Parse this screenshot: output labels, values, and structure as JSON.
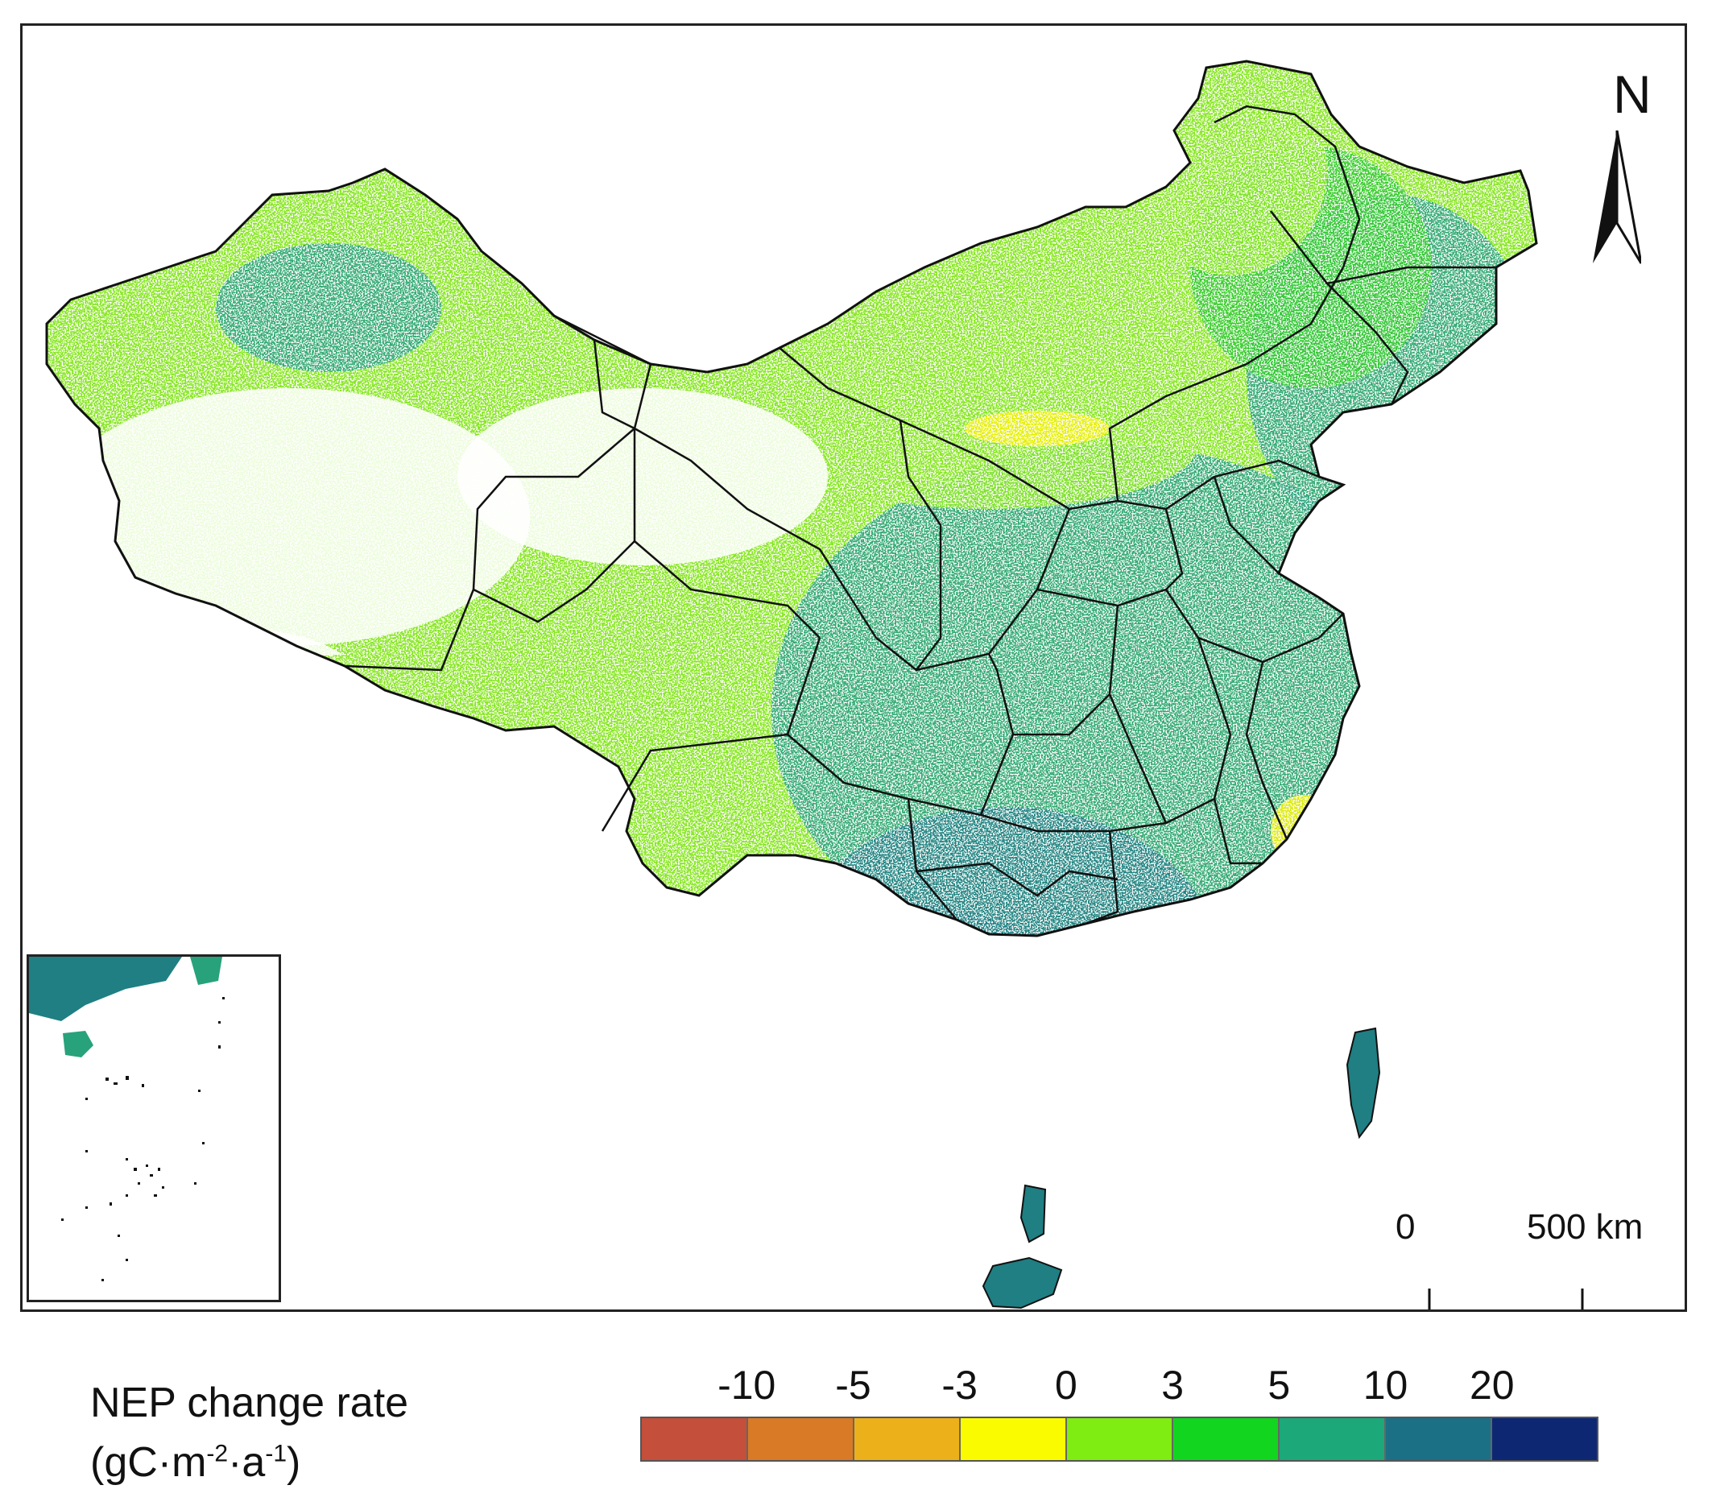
{
  "map": {
    "north_label": "N",
    "scale": {
      "start": "0",
      "end": "500",
      "unit": "km"
    }
  },
  "legend": {
    "title_line1": "NEP change rate",
    "unit_prefix": "(gC·m",
    "unit_exp1": "-2",
    "unit_mid": "·a",
    "unit_exp2": "-1",
    "unit_suffix": ")",
    "tick_labels": [
      "-10",
      "-5",
      "-3",
      "0",
      "3",
      "5",
      "10",
      "20"
    ],
    "colors": [
      "#c44f3a",
      "#d97a26",
      "#ecb11a",
      "#fbfb00",
      "#7fec12",
      "#12d51f",
      "#1da87a",
      "#1b7086",
      "#0e2772"
    ]
  },
  "colors": {
    "outline": "#111111",
    "light_green": "#86e61f",
    "yellow": "#f0f000",
    "green": "#2fc92a",
    "teal": "#28a27b",
    "dark_teal": "#1f7f83",
    "navy": "#1a3c74"
  }
}
